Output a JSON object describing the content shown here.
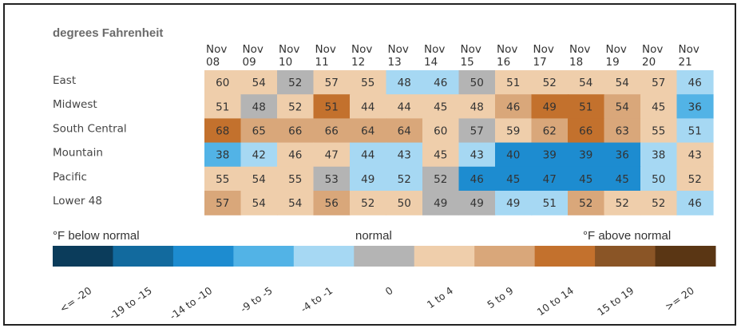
{
  "chart_data": {
    "type": "heatmap",
    "title": "degrees Fahrenheit",
    "columns": [
      [
        "Nov",
        "08"
      ],
      [
        "Nov",
        "09"
      ],
      [
        "Nov",
        "10"
      ],
      [
        "Nov",
        "11"
      ],
      [
        "Nov",
        "12"
      ],
      [
        "Nov",
        "13"
      ],
      [
        "Nov",
        "14"
      ],
      [
        "Nov",
        "15"
      ],
      [
        "Nov",
        "16"
      ],
      [
        "Nov",
        "17"
      ],
      [
        "Nov",
        "18"
      ],
      [
        "Nov",
        "19"
      ],
      [
        "Nov",
        "20"
      ],
      [
        "Nov",
        "21"
      ]
    ],
    "rows": [
      "East",
      "Midwest",
      "South Central",
      "Mountain",
      "Pacific",
      "Lower 48"
    ],
    "values": [
      [
        60,
        54,
        52,
        57,
        55,
        48,
        46,
        50,
        51,
        52,
        54,
        54,
        57,
        46
      ],
      [
        51,
        48,
        52,
        51,
        44,
        44,
        45,
        48,
        46,
        49,
        51,
        54,
        45,
        36
      ],
      [
        68,
        65,
        66,
        66,
        64,
        64,
        60,
        57,
        59,
        62,
        66,
        63,
        55,
        51
      ],
      [
        38,
        42,
        46,
        47,
        44,
        43,
        45,
        43,
        40,
        39,
        39,
        36,
        38,
        43
      ],
      [
        55,
        54,
        55,
        53,
        49,
        52,
        52,
        46,
        45,
        47,
        45,
        45,
        50,
        52
      ],
      [
        57,
        54,
        54,
        56,
        52,
        50,
        49,
        49,
        49,
        51,
        52,
        52,
        52,
        46
      ]
    ],
    "anomaly_bins": [
      [
        3,
        1,
        0,
        3,
        2,
        -4,
        -3,
        0,
        3,
        2,
        2,
        2,
        3,
        -3
      ],
      [
        3,
        0,
        3,
        10,
        1,
        1,
        3,
        4,
        5,
        10,
        10,
        9,
        4,
        -5
      ],
      [
        10,
        8,
        8,
        8,
        5,
        5,
        3,
        0,
        3,
        5,
        10,
        9,
        2,
        -1
      ],
      [
        -8,
        -4,
        2,
        3,
        -1,
        -1,
        1,
        -1,
        -10,
        -10,
        -10,
        -12,
        -4,
        1
      ],
      [
        1,
        1,
        2,
        0,
        -1,
        -1,
        0,
        -10,
        -10,
        -10,
        -10,
        -12,
        -4,
        2
      ],
      [
        5,
        3,
        3,
        5,
        2,
        2,
        0,
        0,
        -4,
        -4,
        5,
        2,
        1,
        -4
      ]
    ],
    "legend": {
      "below_label": "°F below normal",
      "normal_label": "normal",
      "above_label": "°F above normal",
      "bins": [
        {
          "label": "<= -20",
          "color": "#0b3c5b"
        },
        {
          "label": "-19 to -15",
          "color": "#126a9e"
        },
        {
          "label": "-14 to -10",
          "color": "#1d8cd0"
        },
        {
          "label": "-9 to -5",
          "color": "#52b3e6"
        },
        {
          "label": "-4 to -1",
          "color": "#a6d8f3"
        },
        {
          "label": "0",
          "color": "#b4b4b4"
        },
        {
          "label": "1 to 4",
          "color": "#efceab"
        },
        {
          "label": "5 to 9",
          "color": "#d9a77a"
        },
        {
          "label": "10 to 14",
          "color": "#c3712d"
        },
        {
          "label": "15 to 19",
          "color": "#8a5526"
        },
        {
          "label": ">= 20",
          "color": "#5a3614"
        }
      ]
    }
  }
}
